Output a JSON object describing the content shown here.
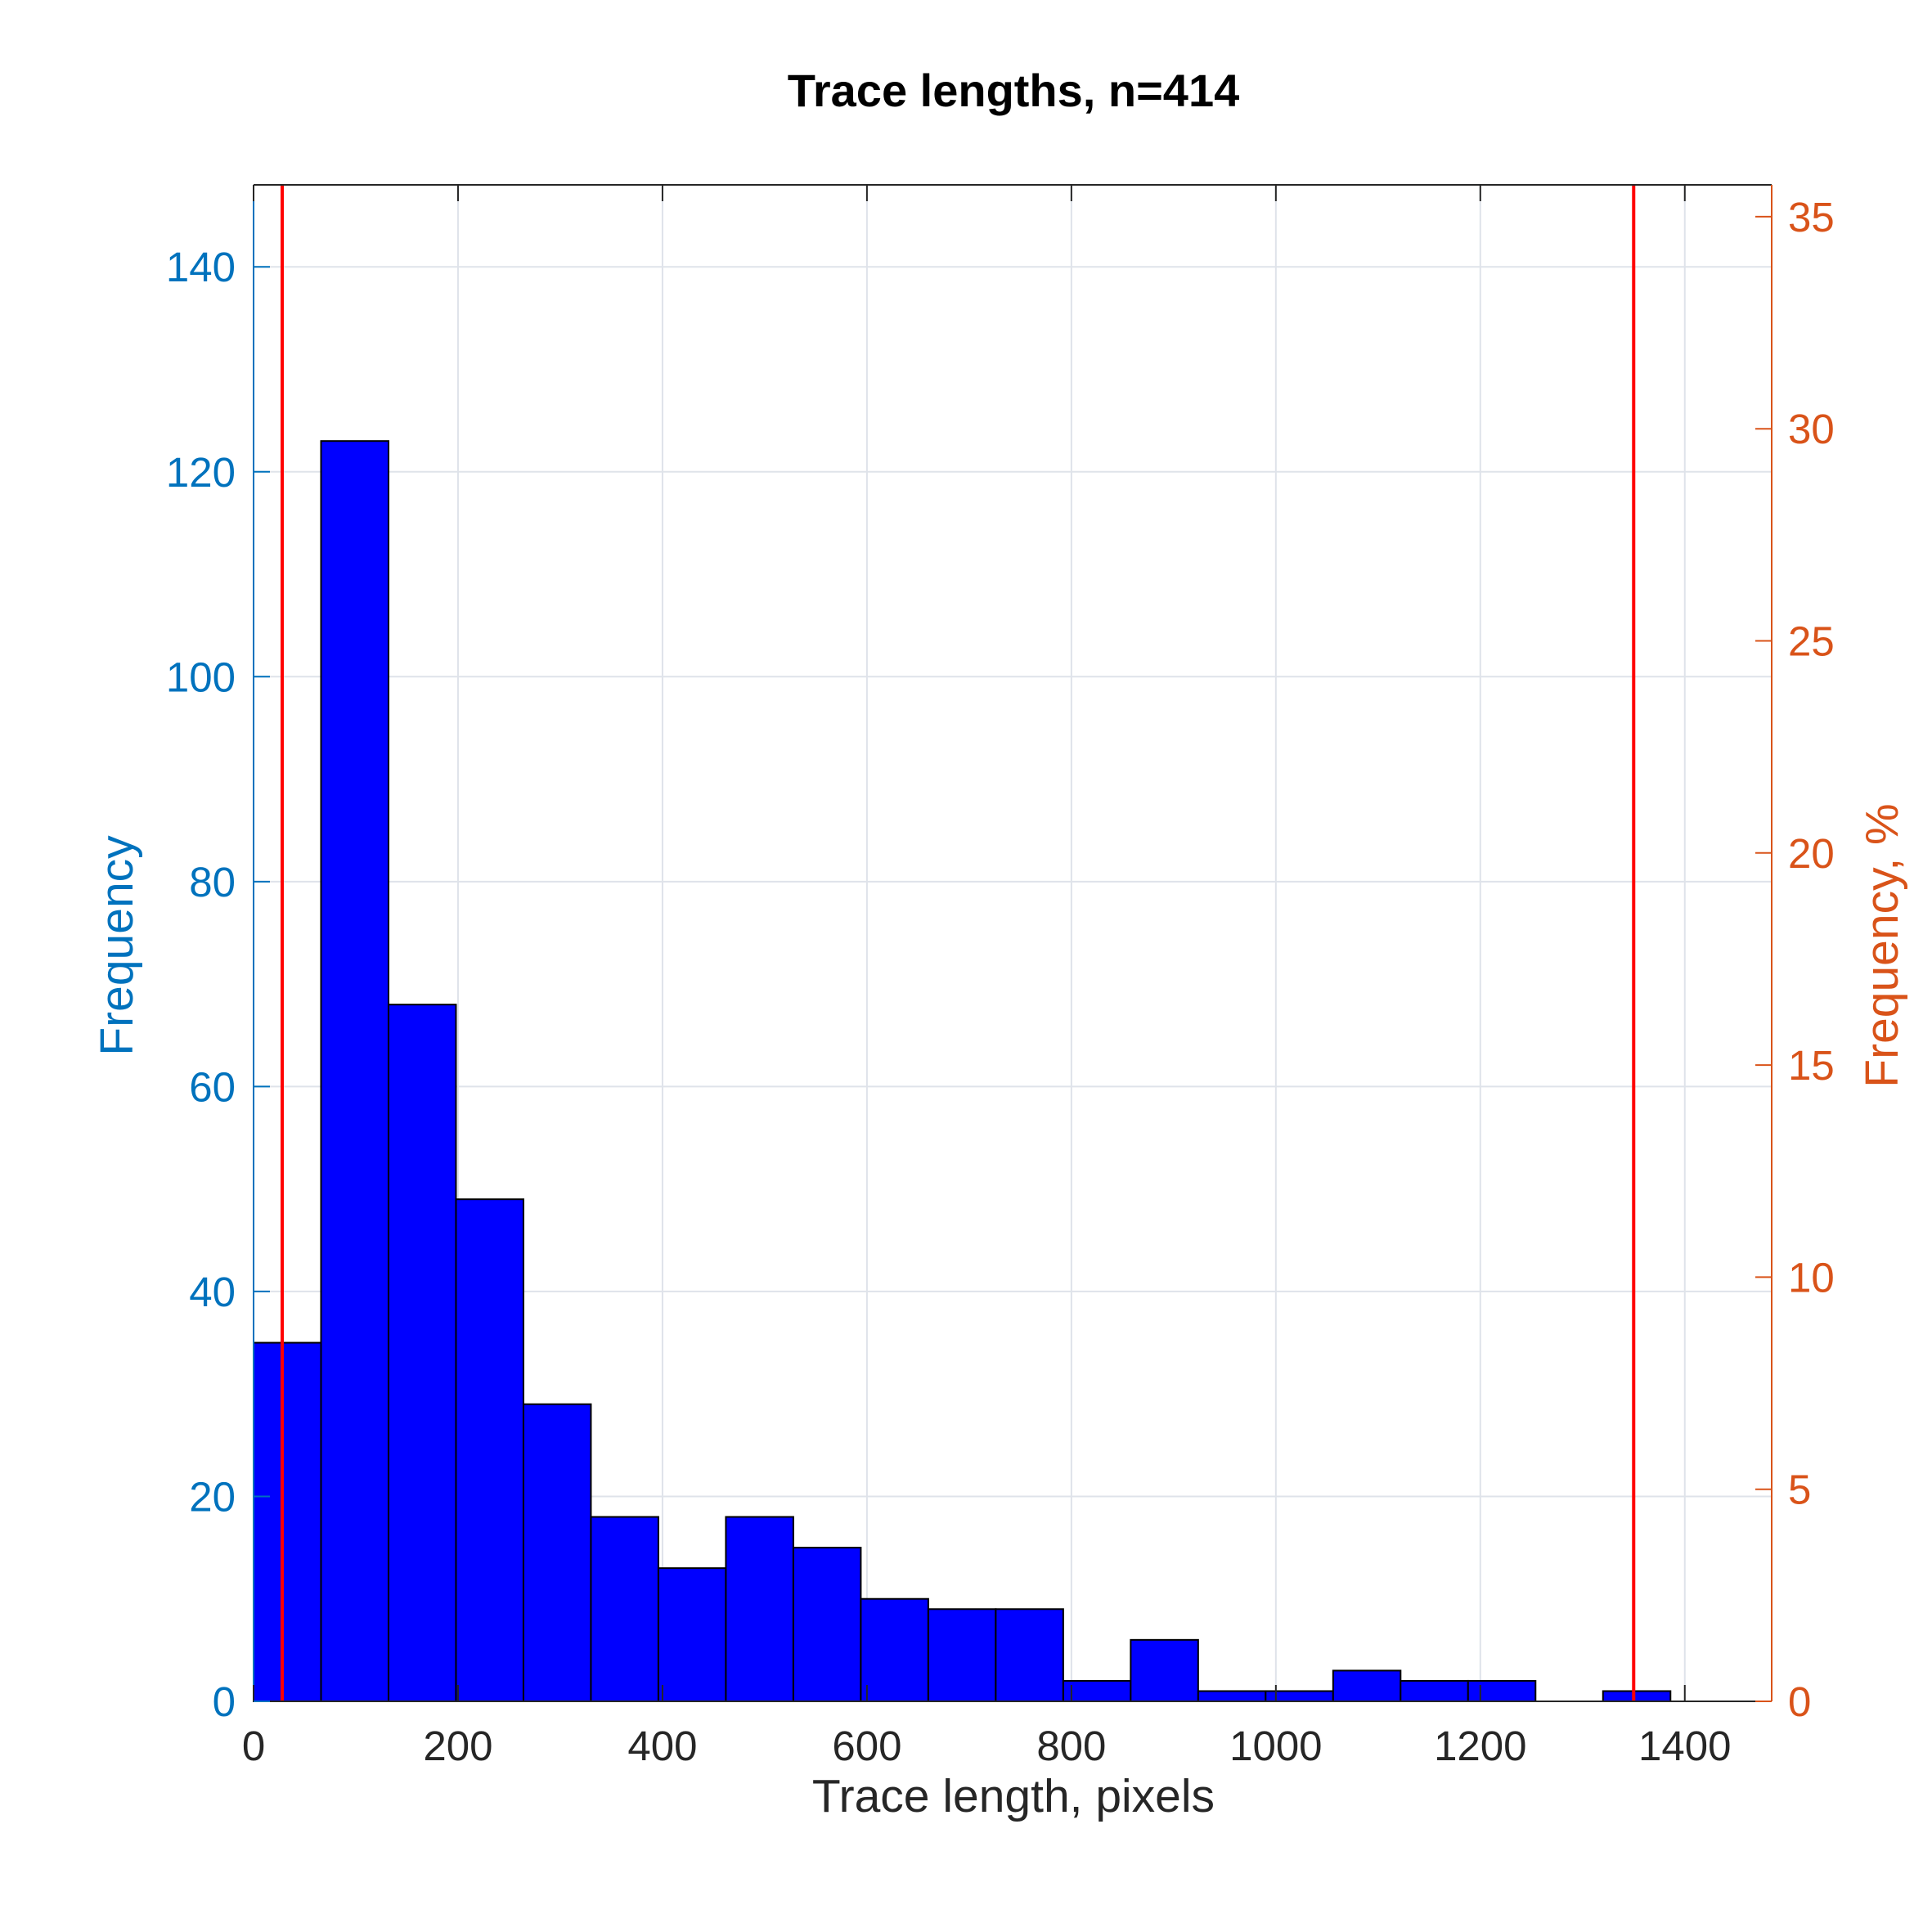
{
  "chart_data": {
    "type": "bar",
    "title": "Trace lengths, n=414",
    "xlabel": "Trace length, pixels",
    "ylabel_left": "Frequency",
    "ylabel_right": "Frequency, %",
    "xlim": [
      0,
      1485
    ],
    "ylim_left": [
      0,
      148
    ],
    "ylim_right": [
      0,
      35.75
    ],
    "x_ticks": [
      0,
      200,
      400,
      600,
      800,
      1000,
      1200,
      1400
    ],
    "y_ticks_left": [
      0,
      20,
      40,
      60,
      80,
      100,
      120,
      140
    ],
    "y_ticks_right": [
      0,
      5,
      10,
      15,
      20,
      25,
      30,
      35
    ],
    "grid": true,
    "bin_edges": [
      0,
      66,
      132,
      198,
      264,
      330,
      396,
      462,
      528,
      594,
      660,
      726,
      792,
      858,
      924,
      990,
      1056,
      1122,
      1188,
      1254,
      1320,
      1386
    ],
    "values": [
      35,
      123,
      68,
      49,
      29,
      18,
      13,
      18,
      15,
      10,
      9,
      9,
      2,
      6,
      1,
      1,
      3,
      2,
      2,
      0,
      1
    ],
    "reference_lines_x": [
      28,
      1350
    ],
    "colors": {
      "bar_fill": "#0000ff",
      "bar_edge": "#000000",
      "left_axis": "#0072bd",
      "right_axis": "#d95319",
      "reference_line": "#ff0000",
      "grid": "#dfe3ea"
    }
  }
}
